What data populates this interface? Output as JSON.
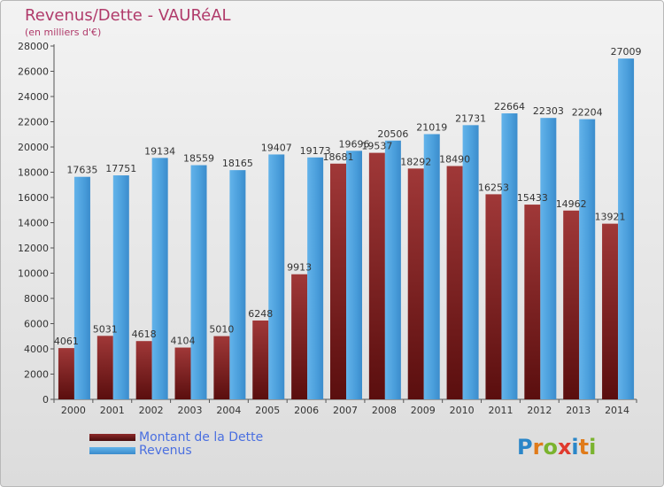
{
  "header": {
    "title": "Revenus/Dette - VAURéAL",
    "subtitle": "(en milliers d'€)"
  },
  "legend": {
    "items": [
      {
        "label": "Montant de la Dette",
        "color": "#7b1f1f"
      },
      {
        "label": "Revenus",
        "color": "#4fa3e0"
      }
    ]
  },
  "logo": {
    "text": "Proxiti",
    "letters": [
      {
        "ch": "P",
        "color": "#2a86c8"
      },
      {
        "ch": "r",
        "color": "#e07b1a"
      },
      {
        "ch": "o",
        "color": "#7ab32e"
      },
      {
        "ch": "x",
        "color": "#e03a2e"
      },
      {
        "ch": "i",
        "color": "#2a86c8"
      },
      {
        "ch": "t",
        "color": "#e07b1a"
      },
      {
        "ch": "i",
        "color": "#7ab32e"
      }
    ]
  },
  "chart_data": {
    "type": "bar",
    "title": "Revenus/Dette - VAURéAL",
    "subtitle": "(en milliers d'€)",
    "categories": [
      "2000",
      "2001",
      "2002",
      "2003",
      "2004",
      "2005",
      "2006",
      "2007",
      "2008",
      "2009",
      "2010",
      "2011",
      "2012",
      "2013",
      "2014"
    ],
    "series": [
      {
        "name": "Montant de la Dette",
        "color": "#7b1f1f",
        "values": [
          4061,
          5031,
          4618,
          4104,
          5010,
          6248,
          9913,
          18681,
          19537,
          18292,
          18490,
          16253,
          15433,
          14962,
          13921
        ],
        "labels": [
          "4061",
          "5031",
          "4618",
          "4104",
          "5010",
          "6248",
          "9913",
          "18681",
          "19537",
          "18292",
          "18490",
          "16253",
          "15433",
          "14962",
          "13921"
        ]
      },
      {
        "name": "Revenus",
        "color": "#4fa3e0",
        "values": [
          17635,
          17751,
          19134,
          18559,
          18165,
          19407,
          19173,
          19696,
          20506,
          21019,
          21731,
          22664,
          22303,
          22204,
          27009
        ],
        "labels": [
          "17635",
          "17751",
          "19134",
          "18559",
          "18165",
          "19407",
          "19173",
          "19696",
          "20506",
          "21019",
          "21731",
          "22664",
          "22303",
          "22204",
          "27009"
        ]
      }
    ],
    "ylim": [
      0,
      28000
    ],
    "yticks": [
      0,
      2000,
      4000,
      6000,
      8000,
      10000,
      12000,
      14000,
      16000,
      18000,
      20000,
      22000,
      24000,
      26000,
      28000
    ],
    "grid": false,
    "legend_position": "bottom-left"
  }
}
